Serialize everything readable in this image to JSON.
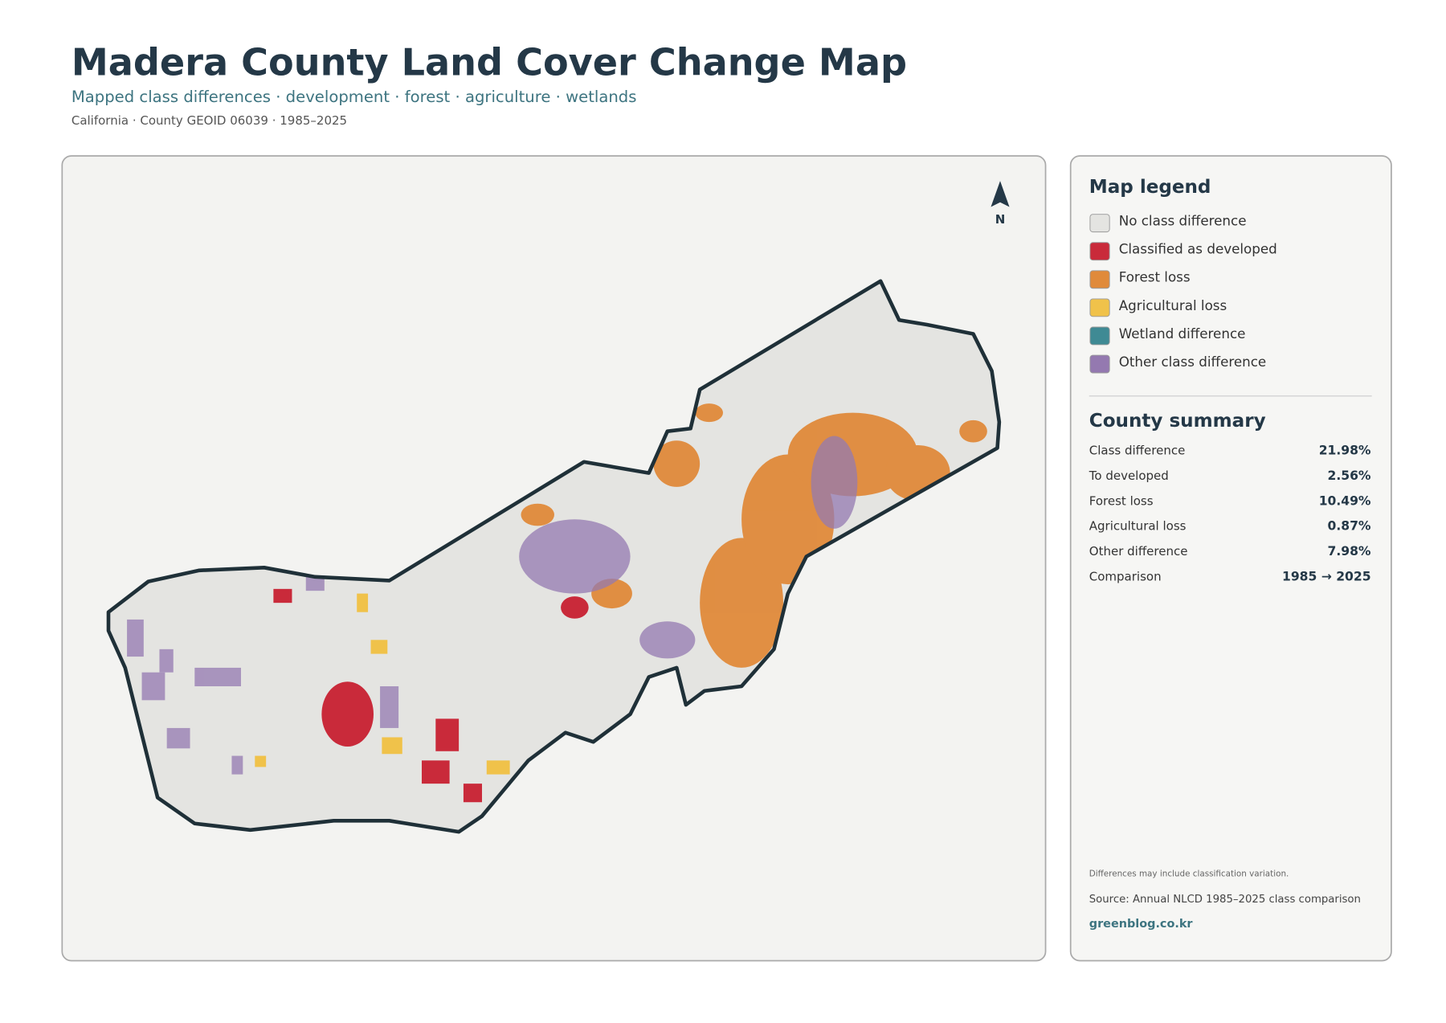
{
  "header": {
    "title": "Madera County Land Cover Change Map",
    "subtitle": "Mapped class differences · development · forest · agriculture · wetlands",
    "meta": "California · County GEOID 06039 · 1985–2025"
  },
  "map": {
    "north_label": "N"
  },
  "legend": {
    "title": "Map legend",
    "items": [
      {
        "label": "No class difference",
        "color": "#e4e4e1"
      },
      {
        "label": "Classified as developed",
        "color": "#c92a3a"
      },
      {
        "label": "Forest loss",
        "color": "#e08a3a"
      },
      {
        "label": "Agricultural loss",
        "color": "#f0c24a"
      },
      {
        "label": "Wetland difference",
        "color": "#3f8a94"
      },
      {
        "label": "Other class difference",
        "color": "#9479b0"
      }
    ]
  },
  "summary": {
    "title": "County summary",
    "rows": [
      {
        "label": "Class difference",
        "value": "21.98%"
      },
      {
        "label": "To developed",
        "value": "2.56%"
      },
      {
        "label": "Forest loss",
        "value": "10.49%"
      },
      {
        "label": "Agricultural loss",
        "value": "0.87%"
      },
      {
        "label": "Other difference",
        "value": "7.98%"
      },
      {
        "label": "Comparison",
        "value": "1985 → 2025"
      }
    ]
  },
  "footer": {
    "note": "Differences may include classification variation.",
    "source": "Source: Annual NLCD 1985–2025 class comparison",
    "site": "greenblog.co.kr"
  }
}
